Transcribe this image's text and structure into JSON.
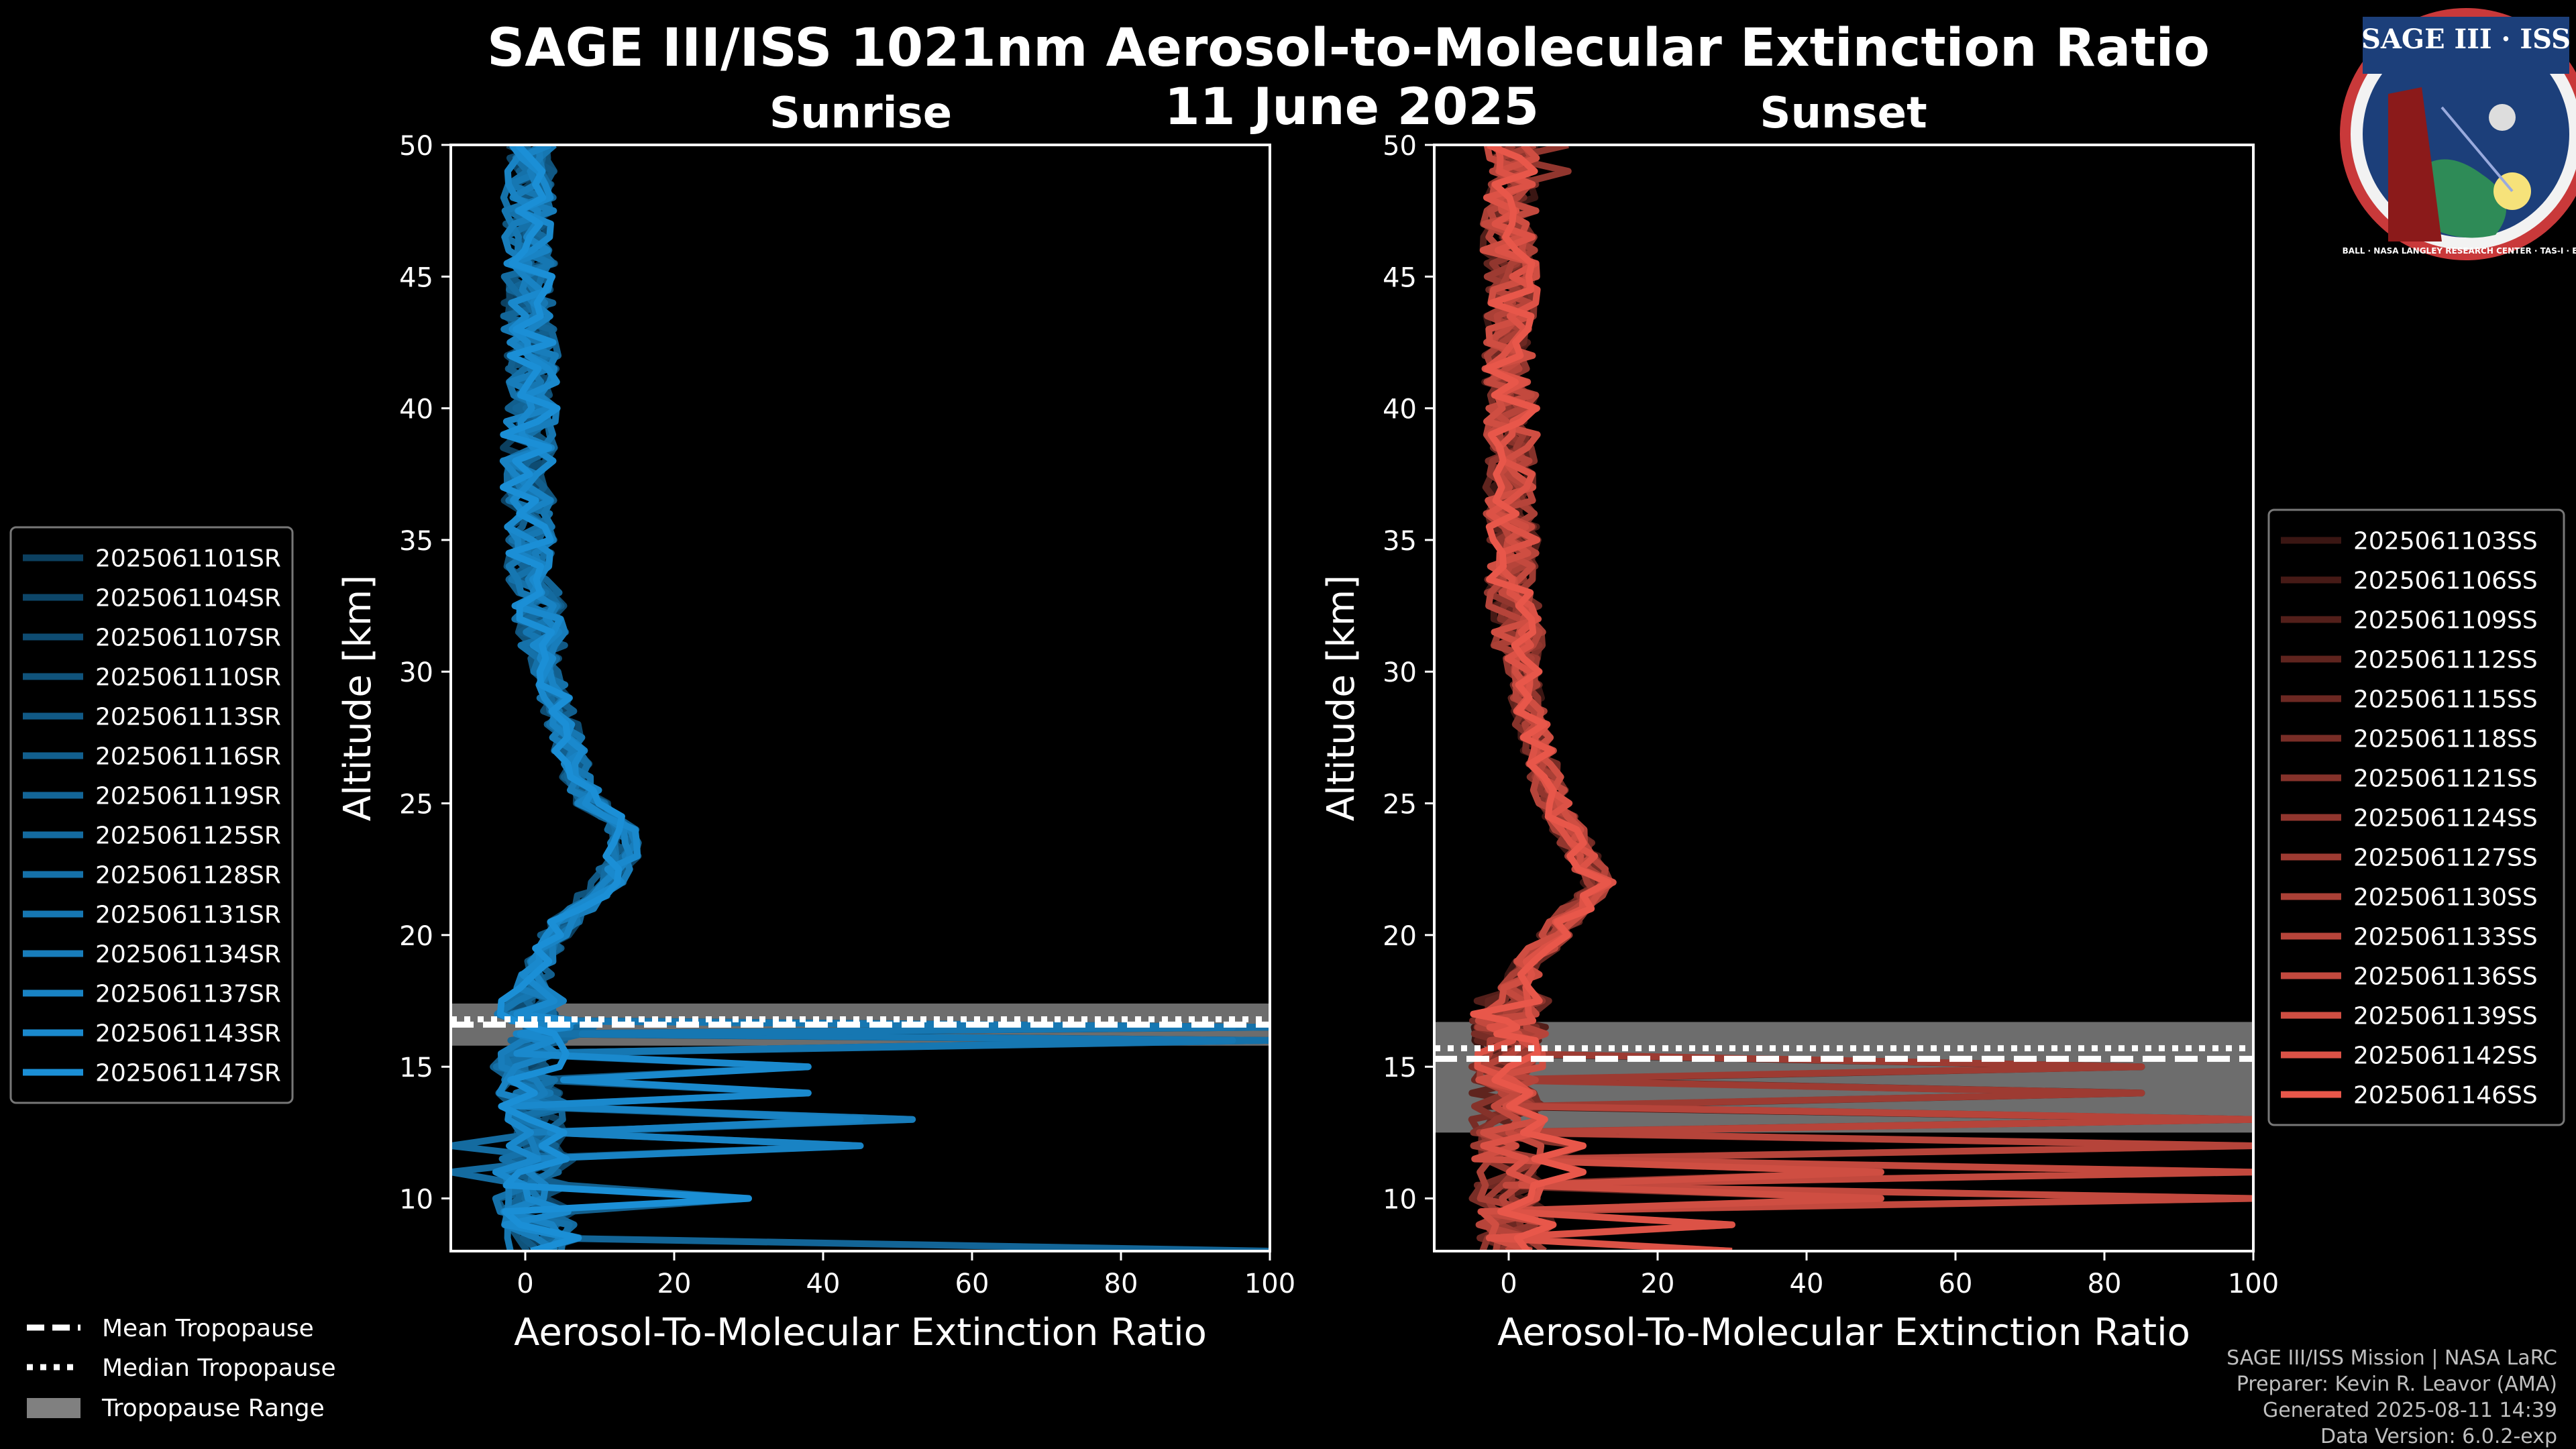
{
  "title": "SAGE III/ISS 1021nm Aerosol-to-Molecular Extinction Ratio",
  "date": "11 June 2025",
  "footer": {
    "line1": "SAGE III/ISS Mission | NASA LaRC",
    "line2": "Preparer: Kevin R. Leavor (AMA)",
    "line3": "Generated 2025-08-11 14:39",
    "line4": "Data Version: 6.0.2-exp"
  },
  "logo": {
    "title": "SAGE III · ISS",
    "ring": "BALL · NASA LANGLEY RESEARCH CENTER · TAS-I · ESA"
  },
  "tropopause_legend": {
    "mean": "Mean Tropopause",
    "median": "Median Tropopause",
    "range": "Tropopause Range"
  },
  "colors": {
    "sunrise": "#1b8fd6",
    "sunset": "#e8574a",
    "tropopause_band": "#808080"
  },
  "chart_data": [
    {
      "type": "line",
      "title": "Sunrise",
      "xlabel": "Aerosol-To-Molecular Extinction Ratio",
      "ylabel": "Altitude [km]",
      "xlim": [
        -10,
        100
      ],
      "ylim": [
        8,
        50
      ],
      "xticks": [
        0,
        20,
        40,
        60,
        80,
        100
      ],
      "yticks": [
        10,
        15,
        20,
        25,
        30,
        35,
        40,
        45,
        50
      ],
      "legend_position": "left",
      "tropopause": {
        "mean": 16.6,
        "median": 16.8,
        "range": [
          15.8,
          17.4
        ]
      },
      "series_names": [
        "2025061101SR",
        "2025061104SR",
        "2025061107SR",
        "2025061110SR",
        "2025061113SR",
        "2025061116SR",
        "2025061119SR",
        "2025061125SR",
        "2025061128SR",
        "2025061131SR",
        "2025061134SR",
        "2025061137SR",
        "2025061143SR",
        "2025061147SR"
      ],
      "profile_altitudes": [
        8,
        9,
        10,
        11,
        12,
        13,
        14,
        15,
        16,
        16.5,
        17,
        18,
        19,
        20,
        21,
        22,
        23,
        24,
        25,
        26,
        27,
        28,
        29,
        30,
        31,
        32,
        33,
        34,
        35,
        36,
        37,
        38,
        39,
        40,
        41,
        42,
        43,
        44,
        45,
        46,
        47,
        48,
        49,
        50
      ],
      "mean_profile": [
        3,
        2,
        1,
        1,
        2,
        2,
        1,
        0,
        2,
        5,
        1,
        1,
        2,
        4,
        7,
        11,
        13,
        13,
        9,
        7,
        6,
        5,
        4,
        3,
        2.5,
        2,
        1.5,
        1,
        0.5,
        0.5,
        0.5,
        0.5,
        0.5,
        1,
        1,
        1,
        0.5,
        0.5,
        0.5,
        0.5,
        0.5,
        0.5,
        0.5,
        1
      ],
      "notable_excursions": [
        {
          "alt": 16.4,
          "value": 100
        },
        {
          "alt": 16.0,
          "value": 95
        },
        {
          "alt": 13.0,
          "value": 52
        },
        {
          "alt": 12.5,
          "value": 45
        },
        {
          "alt": 14.5,
          "value": 38
        },
        {
          "alt": 10.0,
          "value": 30
        },
        {
          "alt": 8.0,
          "value": 100
        },
        {
          "alt": 11.5,
          "value": -10
        }
      ]
    },
    {
      "type": "line",
      "title": "Sunset",
      "xlabel": "Aerosol-To-Molecular Extinction Ratio",
      "ylabel": "Altitude [km]",
      "xlim": [
        -10,
        100
      ],
      "ylim": [
        8,
        50
      ],
      "xticks": [
        0,
        20,
        40,
        60,
        80,
        100
      ],
      "yticks": [
        10,
        15,
        20,
        25,
        30,
        35,
        40,
        45,
        50
      ],
      "legend_position": "right",
      "tropopause": {
        "mean": 15.3,
        "median": 15.7,
        "range": [
          12.5,
          16.7
        ]
      },
      "series_names": [
        "2025061103SS",
        "2025061106SS",
        "2025061109SS",
        "2025061112SS",
        "2025061115SS",
        "2025061118SS",
        "2025061121SS",
        "2025061124SS",
        "2025061127SS",
        "2025061130SS",
        "2025061133SS",
        "2025061136SS",
        "2025061139SS",
        "2025061142SS",
        "2025061146SS"
      ],
      "profile_altitudes": [
        8,
        9,
        10,
        11,
        12,
        13,
        14,
        15,
        16,
        16.5,
        17,
        18,
        19,
        20,
        21,
        22,
        23,
        24,
        25,
        26,
        27,
        28,
        29,
        30,
        31,
        32,
        33,
        34,
        35,
        36,
        37,
        38,
        39,
        40,
        41,
        42,
        43,
        44,
        45,
        46,
        47,
        48,
        49,
        50
      ],
      "mean_profile": [
        1,
        1,
        0,
        0,
        0,
        0,
        0,
        0,
        0,
        0,
        0,
        1,
        3,
        6,
        9,
        12,
        10,
        8,
        6,
        5,
        4,
        3,
        2.5,
        2,
        1.5,
        1,
        0.5,
        0.5,
        0.5,
        0,
        0,
        0.5,
        0.5,
        0.5,
        0,
        0,
        0,
        0.5,
        0.5,
        0,
        0,
        0.5,
        0.5,
        0.5
      ],
      "notable_excursions": [
        {
          "alt": 14.5,
          "value": 85
        },
        {
          "alt": 13.0,
          "value": 100
        },
        {
          "alt": 12.6,
          "value": 100
        },
        {
          "alt": 10.5,
          "value": 100
        },
        {
          "alt": 10.5,
          "value": 50
        },
        {
          "alt": 8.5,
          "value": 30
        },
        {
          "alt": 11.5,
          "value": 10
        },
        {
          "alt": 49.5,
          "value": 8
        }
      ]
    }
  ]
}
